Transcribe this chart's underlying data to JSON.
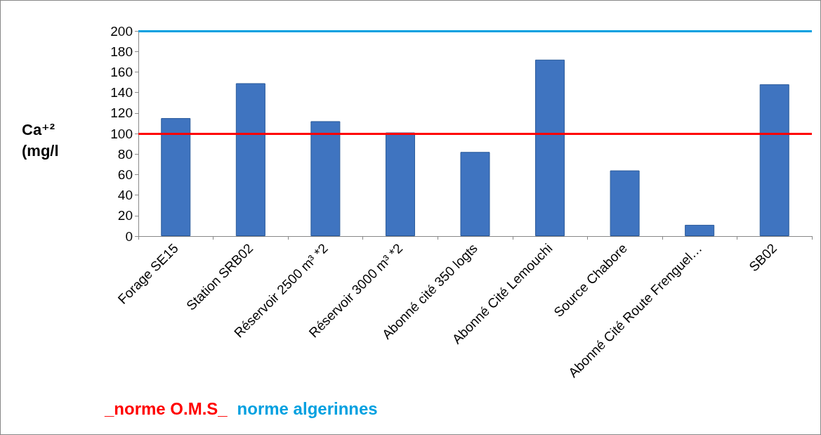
{
  "chart_data": {
    "type": "bar",
    "ylabel": "Ca⁺² (mg/l",
    "categories": [
      "Forage SE15",
      "Station SRB02",
      "Réservoir 2500 m³ *2",
      "Réservoir 3000 m³ *2",
      "Abonné cité 350 logts",
      "Abonné Cité Lemouchi",
      "Source Chabore",
      "Abonné Cité Route Frenguel…",
      "SB02"
    ],
    "values": [
      115,
      149,
      112,
      101,
      82,
      172,
      64,
      11,
      148
    ],
    "color": "#3f74c0",
    "ylim": [
      0,
      200
    ],
    "yticks": [
      0,
      20,
      40,
      60,
      80,
      100,
      120,
      140,
      160,
      180,
      200
    ],
    "grid": false,
    "ref_lines": [
      {
        "axis": "y",
        "value": 100,
        "label": "_norme O.M.S_",
        "color": "#ff0000"
      },
      {
        "axis": "y",
        "value": 200,
        "label": "norme algerinnes",
        "color": "#00a0e0"
      }
    ]
  }
}
